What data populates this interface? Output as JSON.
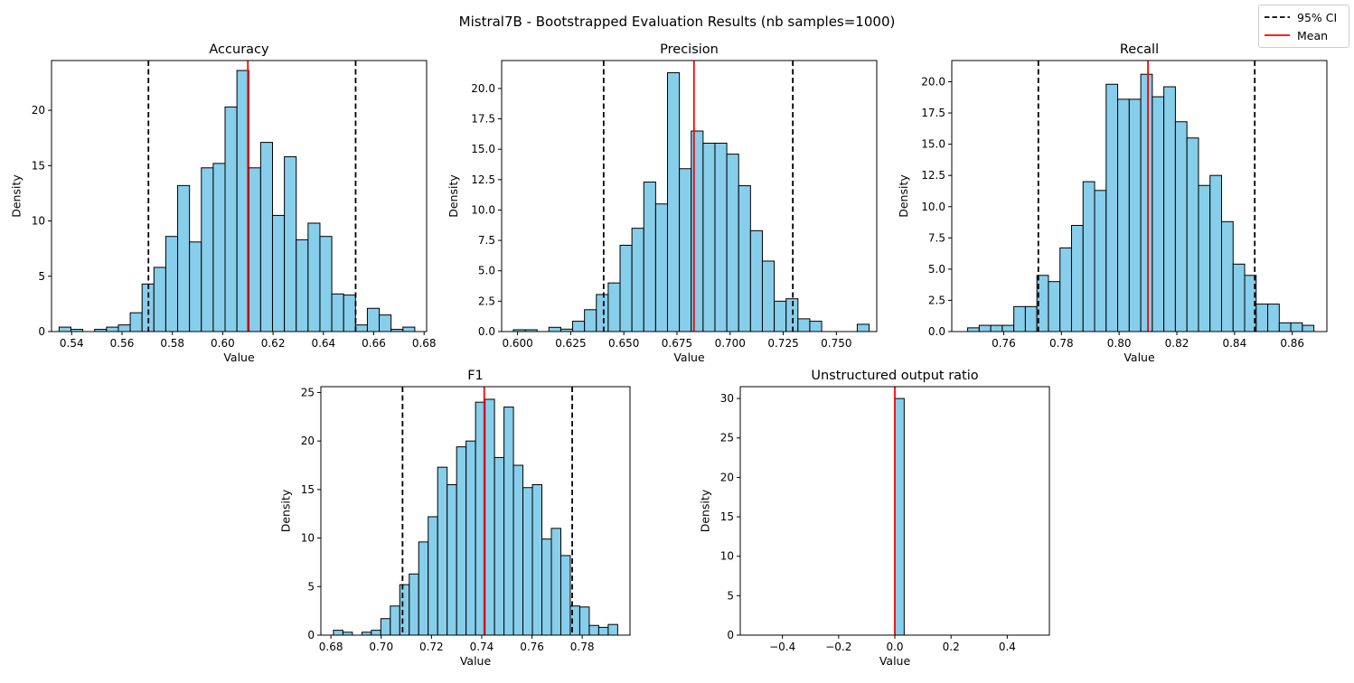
{
  "figure": {
    "suptitle": "Mistral7B - Bootstrapped Evaluation Results (nb samples=1000)"
  },
  "legend": {
    "ci_label": "95% CI",
    "mean_label": "Mean"
  },
  "colors": {
    "bar_fill": "#87CEEB",
    "bar_edge": "#000000",
    "mean_line": "#ff0000",
    "ci_line": "#000000"
  },
  "chart_data": [
    {
      "type": "bar",
      "title": "Accuracy",
      "xlabel": "Value",
      "ylabel": "Density",
      "xlim": [
        0.532,
        0.681
      ],
      "ylim": [
        0,
        24.5
      ],
      "xticks": [
        0.54,
        0.56,
        0.58,
        0.6,
        0.62,
        0.64,
        0.66,
        0.68
      ],
      "xtick_labels": [
        "0.54",
        "0.56",
        "0.58",
        "0.60",
        "0.62",
        "0.64",
        "0.66",
        "0.68"
      ],
      "yticks": [
        0,
        5,
        10,
        15,
        20
      ],
      "ytick_labels": [
        "0",
        "5",
        "10",
        "15",
        "20"
      ],
      "bin_start": 0.535,
      "bin_width": 0.00471,
      "values": [
        0.4,
        0.2,
        0,
        0.2,
        0.4,
        0.6,
        1.7,
        4.3,
        5.8,
        8.6,
        13.2,
        8.1,
        14.8,
        15.2,
        20.3,
        23.6,
        14.8,
        17.1,
        10.5,
        15.8,
        8.3,
        9.8,
        8.6,
        3.4,
        3.3,
        0.6,
        2.1,
        1.5,
        0.2,
        0.4
      ],
      "mean": 0.61,
      "ci": [
        0.5705,
        0.6528
      ]
    },
    {
      "type": "bar",
      "title": "Precision",
      "xlabel": "Value",
      "ylabel": "Density",
      "xlim": [
        0.5925,
        0.769
      ],
      "ylim": [
        0,
        22.3
      ],
      "xticks": [
        0.6,
        0.625,
        0.65,
        0.675,
        0.7,
        0.725,
        0.75
      ],
      "xtick_labels": [
        "0.600",
        "0.625",
        "0.650",
        "0.675",
        "0.700",
        "0.725",
        "0.750"
      ],
      "yticks": [
        0,
        2.5,
        5,
        7.5,
        10,
        12.5,
        15,
        17.5,
        20
      ],
      "ytick_labels": [
        "0.0",
        "2.5",
        "5.0",
        "7.5",
        "10.0",
        "12.5",
        "15.0",
        "17.5",
        "20.0"
      ],
      "bin_start": 0.598,
      "bin_width": 0.00558,
      "values": [
        0.15,
        0.15,
        0,
        0.35,
        0.2,
        0.85,
        1.8,
        3.05,
        4.0,
        7.1,
        8.5,
        12.3,
        10.5,
        21.3,
        13.4,
        16.5,
        15.5,
        15.5,
        14.6,
        12.0,
        8.3,
        5.8,
        2.5,
        2.7,
        1.05,
        0.85,
        0,
        0,
        0,
        0.6
      ],
      "mean": 0.683,
      "ci": [
        0.6405,
        0.7295
      ]
    },
    {
      "type": "bar",
      "title": "Recall",
      "xlabel": "Value",
      "ylabel": "Density",
      "xlim": [
        0.742,
        0.872
      ],
      "ylim": [
        0,
        21.7
      ],
      "xticks": [
        0.76,
        0.78,
        0.8,
        0.82,
        0.84,
        0.86
      ],
      "xtick_labels": [
        "0.76",
        "0.78",
        "0.80",
        "0.82",
        "0.84",
        "0.86"
      ],
      "yticks": [
        0,
        2.5,
        5,
        7.5,
        10,
        12.5,
        15,
        17.5,
        20
      ],
      "ytick_labels": [
        "0.0",
        "2.5",
        "5.0",
        "7.5",
        "10.0",
        "12.5",
        "15.0",
        "17.5",
        "20.0"
      ],
      "bin_start": 0.7475,
      "bin_width": 0.004,
      "values": [
        0.3,
        0.5,
        0.5,
        0.5,
        2.0,
        2.0,
        4.5,
        4.0,
        6.7,
        8.5,
        12.0,
        11.3,
        19.8,
        18.6,
        18.6,
        20.6,
        18.8,
        19.6,
        16.8,
        15.5,
        11.7,
        12.5,
        8.8,
        5.4,
        4.5,
        2.2,
        2.2,
        0.7,
        0.7,
        0.5
      ],
      "mean": 0.81,
      "ci": [
        0.772,
        0.847
      ]
    },
    {
      "type": "bar",
      "title": "F1",
      "xlabel": "Value",
      "ylabel": "Density",
      "xlim": [
        0.676,
        0.799
      ],
      "ylim": [
        0,
        25.6
      ],
      "xticks": [
        0.68,
        0.7,
        0.72,
        0.74,
        0.76,
        0.78
      ],
      "xtick_labels": [
        "0.68",
        "0.70",
        "0.72",
        "0.74",
        "0.76",
        "0.78"
      ],
      "yticks": [
        0,
        5,
        10,
        15,
        20,
        25
      ],
      "ytick_labels": [
        "0",
        "5",
        "10",
        "15",
        "20",
        "25"
      ],
      "bin_start": 0.681,
      "bin_width": 0.00377,
      "values": [
        0.5,
        0.3,
        0,
        0.3,
        0.5,
        1.7,
        3.0,
        5.2,
        6.3,
        9.6,
        12.2,
        17.3,
        15.5,
        19.4,
        20.0,
        24.0,
        24.3,
        18.3,
        23.5,
        17.5,
        15.2,
        15.5,
        9.9,
        11.0,
        8.2,
        3.0,
        2.9,
        1.0,
        0.8,
        1.1
      ],
      "mean": 0.741,
      "ci": [
        0.7085,
        0.776
      ]
    },
    {
      "type": "bar",
      "title": "Unstructured output ratio",
      "xlabel": "Value",
      "ylabel": "Density",
      "xlim": [
        -0.55,
        0.55
      ],
      "ylim": [
        0,
        31.5
      ],
      "xticks": [
        -0.4,
        -0.2,
        0,
        0.2,
        0.4
      ],
      "xtick_labels": [
        "−0.4",
        "−0.2",
        "0.0",
        "0.2",
        "0.4"
      ],
      "yticks": [
        0,
        5,
        10,
        15,
        20,
        25,
        30
      ],
      "ytick_labels": [
        "0",
        "5",
        "10",
        "15",
        "20",
        "25",
        "30"
      ],
      "bin_start": -0.5,
      "bin_width": 0.03333,
      "values": [
        0,
        0,
        0,
        0,
        0,
        0,
        0,
        0,
        0,
        0,
        0,
        0,
        0,
        0,
        0,
        30,
        0,
        0,
        0,
        0,
        0,
        0,
        0,
        0,
        0,
        0,
        0,
        0,
        0,
        0
      ],
      "mean": 0.0,
      "ci": []
    }
  ]
}
